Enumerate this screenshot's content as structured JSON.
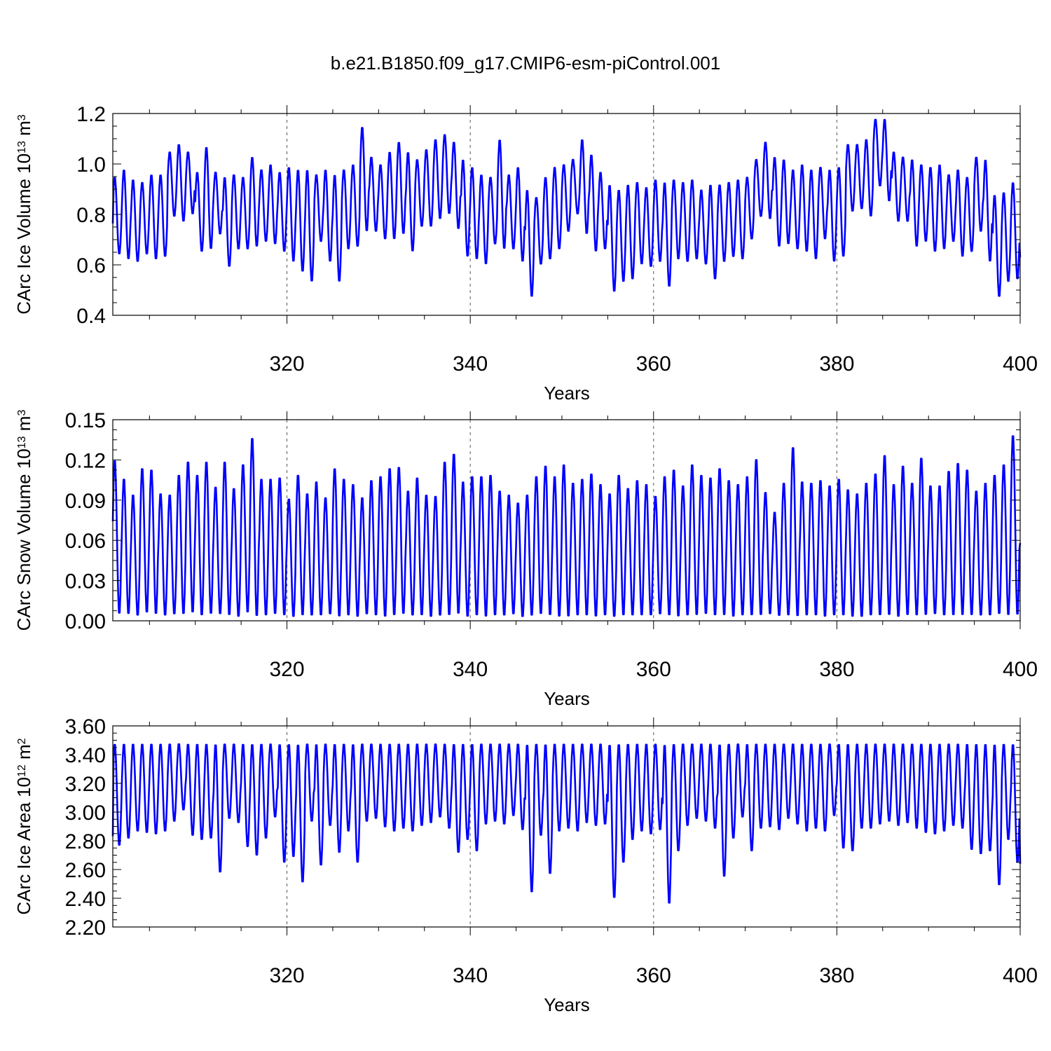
{
  "title": "b.e21.B1850.f09_g17.CMIP6-esm-piControl.001",
  "colors": {
    "series": "#0000ff",
    "axes": "#000000",
    "grid": "#555555"
  },
  "chart_data": [
    {
      "type": "line",
      "title": "",
      "xlabel": "Years",
      "ylabel": {
        "base": "CArc Ice Volume 10",
        "exp": "13",
        "unit": " m",
        "unit_exp": "3"
      },
      "xlim": [
        301,
        400
      ],
      "ylim": [
        0.4,
        1.2
      ],
      "x_ticks": [
        320,
        340,
        360,
        380,
        400
      ],
      "x_tick_labels": [
        "320",
        "340",
        "360",
        "380",
        "400"
      ],
      "y_ticks": [
        0.4,
        0.6,
        0.8,
        1.0,
        1.2
      ],
      "y_tick_labels": [
        "0.4",
        "0.6",
        "0.8",
        "1.0",
        "1.2"
      ],
      "grid": "dashed vertical at major x ticks",
      "series": [
        {
          "seasonal": true,
          "start_fraction": 0.4,
          "end_value": 0.63,
          "annual_max": [
            0.95,
            0.98,
            0.94,
            0.93,
            0.96,
            0.96,
            1.05,
            1.08,
            1.05,
            0.97,
            1.07,
            0.97,
            0.95,
            0.96,
            0.95,
            1.03,
            0.98,
            1.0,
            0.97,
            0.99,
            0.98,
            0.98,
            0.96,
            0.98,
            0.96,
            0.98,
            1.0,
            1.15,
            1.03,
            1.0,
            1.05,
            1.09,
            1.05,
            1.02,
            1.06,
            1.1,
            1.12,
            1.09,
            1.02,
            0.99,
            0.96,
            0.95,
            1.1,
            0.96,
            0.99,
            0.9,
            0.87,
            0.95,
            0.99,
            1.0,
            1.02,
            1.1,
            1.04,
            0.97,
            0.92,
            0.9,
            0.92,
            0.93,
            0.91,
            0.94,
            0.93,
            0.94,
            0.93,
            0.94,
            0.9,
            0.92,
            0.92,
            0.93,
            0.94,
            0.95,
            1.02,
            1.09,
            1.03,
            1.02,
            0.98,
            1.0,
            0.98,
            0.99,
            0.98,
            0.99,
            1.08,
            1.08,
            1.1,
            1.18,
            1.18,
            1.05,
            1.03,
            1.02,
            1.0,
            0.99,
            1.0,
            0.96,
            0.98,
            0.95,
            1.03,
            1.02,
            0.88,
            0.89,
            0.93
          ],
          "annual_min": [
            0.64,
            0.62,
            0.61,
            0.64,
            0.62,
            0.63,
            0.79,
            0.77,
            0.8,
            0.65,
            0.66,
            0.72,
            0.59,
            0.66,
            0.66,
            0.67,
            0.69,
            0.68,
            0.65,
            0.61,
            0.57,
            0.53,
            0.69,
            0.61,
            0.53,
            0.66,
            0.67,
            0.73,
            0.73,
            0.7,
            0.7,
            0.72,
            0.65,
            0.75,
            0.75,
            0.78,
            0.8,
            0.74,
            0.63,
            0.62,
            0.6,
            0.68,
            0.66,
            0.66,
            0.61,
            0.47,
            0.6,
            0.62,
            0.66,
            0.73,
            0.8,
            0.72,
            0.65,
            0.66,
            0.49,
            0.53,
            0.54,
            0.6,
            0.59,
            0.61,
            0.51,
            0.62,
            0.61,
            0.62,
            0.6,
            0.54,
            0.61,
            0.63,
            0.62,
            0.7,
            0.79,
            0.78,
            0.67,
            0.68,
            0.66,
            0.65,
            0.62,
            0.7,
            0.61,
            0.63,
            0.81,
            0.82,
            0.79,
            0.91,
            0.85,
            0.77,
            0.77,
            0.67,
            0.69,
            0.65,
            0.66,
            0.69,
            0.63,
            0.65,
            0.73,
            0.61,
            0.47,
            0.53,
            0.54
          ]
        }
      ]
    },
    {
      "type": "line",
      "title": "",
      "xlabel": "Years",
      "ylabel": {
        "base": "CArc Snow Volume 10",
        "exp": "13",
        "unit": " m",
        "unit_exp": "3"
      },
      "xlim": [
        301,
        400
      ],
      "ylim": [
        0.0,
        0.15
      ],
      "x_ticks": [
        320,
        340,
        360,
        380,
        400
      ],
      "x_tick_labels": [
        "320",
        "340",
        "360",
        "380",
        "400"
      ],
      "y_ticks": [
        0.0,
        0.03,
        0.06,
        0.09,
        0.12,
        0.15
      ],
      "y_tick_labels": [
        "0.00",
        "0.03",
        "0.06",
        "0.09",
        "0.12",
        "0.15"
      ],
      "grid": "dashed vertical at major x ticks",
      "series": [
        {
          "seasonal": true,
          "start_fraction": 0.6,
          "end_value": 0.058,
          "annual_max": [
            0.121,
            0.107,
            0.095,
            0.115,
            0.114,
            0.096,
            0.095,
            0.11,
            0.12,
            0.11,
            0.12,
            0.101,
            0.12,
            0.1,
            0.118,
            0.138,
            0.107,
            0.107,
            0.108,
            0.092,
            0.11,
            0.096,
            0.105,
            0.093,
            0.115,
            0.107,
            0.103,
            0.093,
            0.106,
            0.109,
            0.115,
            0.116,
            0.098,
            0.108,
            0.095,
            0.094,
            0.12,
            0.126,
            0.105,
            0.109,
            0.109,
            0.11,
            0.098,
            0.095,
            0.089,
            0.095,
            0.109,
            0.117,
            0.109,
            0.118,
            0.104,
            0.107,
            0.111,
            0.103,
            0.096,
            0.11,
            0.1,
            0.106,
            0.103,
            0.094,
            0.109,
            0.114,
            0.102,
            0.118,
            0.11,
            0.108,
            0.115,
            0.106,
            0.103,
            0.109,
            0.122,
            0.097,
            0.082,
            0.104,
            0.131,
            0.105,
            0.104,
            0.106,
            0.102,
            0.107,
            0.099,
            0.096,
            0.104,
            0.111,
            0.125,
            0.103,
            0.117,
            0.104,
            0.123,
            0.102,
            0.102,
            0.113,
            0.119,
            0.114,
            0.098,
            0.104,
            0.11,
            0.118,
            0.14
          ],
          "annual_min": [
            0.004,
            0.004,
            0.003,
            0.005,
            0.004,
            0.003,
            0.004,
            0.004,
            0.005,
            0.003,
            0.004,
            0.004,
            0.003,
            0.002,
            0.005,
            0.002,
            0.003,
            0.004,
            0.003,
            0.002,
            0.003,
            0.003,
            0.003,
            0.004,
            0.002,
            0.003,
            0.002,
            0.004,
            0.003,
            0.002,
            0.003,
            0.004,
            0.003,
            0.003,
            0.002,
            0.003,
            0.003,
            0.004,
            0.002,
            0.003,
            0.002,
            0.003,
            0.003,
            0.004,
            0.002,
            0.003,
            0.004,
            0.003,
            0.002,
            0.002,
            0.003,
            0.003,
            0.002,
            0.003,
            0.002,
            0.003,
            0.003,
            0.003,
            0.003,
            0.004,
            0.003,
            0.002,
            0.003,
            0.003,
            0.004,
            0.003,
            0.003,
            0.002,
            0.003,
            0.003,
            0.003,
            0.004,
            0.003,
            0.003,
            0.002,
            0.003,
            0.003,
            0.002,
            0.003,
            0.003,
            0.002,
            0.002,
            0.003,
            0.003,
            0.003,
            0.002,
            0.003,
            0.003,
            0.003,
            0.004,
            0.003,
            0.003,
            0.003,
            0.003,
            0.003,
            0.003,
            0.004,
            0.003,
            0.003
          ]
        }
      ]
    },
    {
      "type": "line",
      "title": "",
      "xlabel": "Years",
      "ylabel": {
        "base": "CArc Ice Area 10",
        "exp": "12",
        "unit": " m",
        "unit_exp": "2"
      },
      "xlim": [
        301,
        400
      ],
      "ylim": [
        2.2,
        3.6
      ],
      "x_ticks": [
        320,
        340,
        360,
        380,
        400
      ],
      "x_tick_labels": [
        "320",
        "340",
        "360",
        "380",
        "400"
      ],
      "y_ticks": [
        2.2,
        2.4,
        2.6,
        2.8,
        3.0,
        3.2,
        3.4,
        3.6
      ],
      "y_tick_labels": [
        "2.20",
        "2.40",
        "2.60",
        "2.80",
        "3.00",
        "3.20",
        "3.40",
        "3.60"
      ],
      "grid": "dashed vertical at major x ticks",
      "series": [
        {
          "seasonal": true,
          "start_fraction": 0.1,
          "end_value": 2.64,
          "annual_max": [
            3.48,
            3.48,
            3.48,
            3.48,
            3.48,
            3.48,
            3.48,
            3.48,
            3.48,
            3.48,
            3.48,
            3.48,
            3.48,
            3.48,
            3.48,
            3.48,
            3.48,
            3.48,
            3.48,
            3.48,
            3.48,
            3.48,
            3.48,
            3.48,
            3.48,
            3.48,
            3.48,
            3.48,
            3.48,
            3.48,
            3.48,
            3.48,
            3.48,
            3.48,
            3.48,
            3.48,
            3.48,
            3.48,
            3.48,
            3.48,
            3.48,
            3.48,
            3.48,
            3.48,
            3.48,
            3.48,
            3.48,
            3.48,
            3.48,
            3.48,
            3.48,
            3.48,
            3.48,
            3.48,
            3.48,
            3.48,
            3.48,
            3.48,
            3.48,
            3.48,
            3.48,
            3.48,
            3.48,
            3.48,
            3.48,
            3.48,
            3.48,
            3.48,
            3.48,
            3.48,
            3.48,
            3.48,
            3.48,
            3.48,
            3.48,
            3.48,
            3.48,
            3.48,
            3.48,
            3.48,
            3.48,
            3.48,
            3.48,
            3.48,
            3.48,
            3.48,
            3.48,
            3.48,
            3.48,
            3.48,
            3.48,
            3.48,
            3.48,
            3.48,
            3.48,
            3.48,
            3.48,
            3.48,
            3.48
          ],
          "annual_min": [
            2.76,
            2.81,
            2.86,
            2.85,
            2.84,
            2.86,
            2.93,
            3.01,
            2.83,
            2.8,
            2.81,
            2.57,
            2.95,
            2.92,
            2.75,
            2.69,
            2.81,
            2.96,
            2.64,
            2.68,
            2.5,
            2.93,
            2.62,
            2.9,
            2.71,
            2.86,
            2.64,
            2.93,
            2.95,
            2.89,
            2.86,
            2.88,
            2.86,
            2.9,
            2.92,
            2.96,
            2.88,
            2.71,
            2.8,
            2.72,
            2.91,
            2.93,
            2.91,
            2.97,
            2.87,
            2.43,
            2.83,
            2.56,
            2.86,
            2.88,
            2.86,
            2.92,
            2.9,
            2.91,
            2.39,
            2.64,
            2.8,
            2.86,
            2.84,
            2.87,
            2.35,
            2.72,
            2.9,
            2.95,
            2.93,
            2.88,
            2.54,
            2.81,
            2.96,
            2.72,
            2.88,
            2.89,
            2.87,
            2.95,
            2.91,
            2.86,
            2.88,
            2.86,
            2.97,
            2.74,
            2.72,
            2.88,
            2.88,
            2.91,
            2.93,
            2.9,
            2.92,
            2.88,
            2.85,
            2.84,
            2.86,
            2.9,
            2.88,
            2.73,
            2.7,
            2.72,
            2.48,
            2.8,
            2.64
          ]
        }
      ]
    }
  ]
}
